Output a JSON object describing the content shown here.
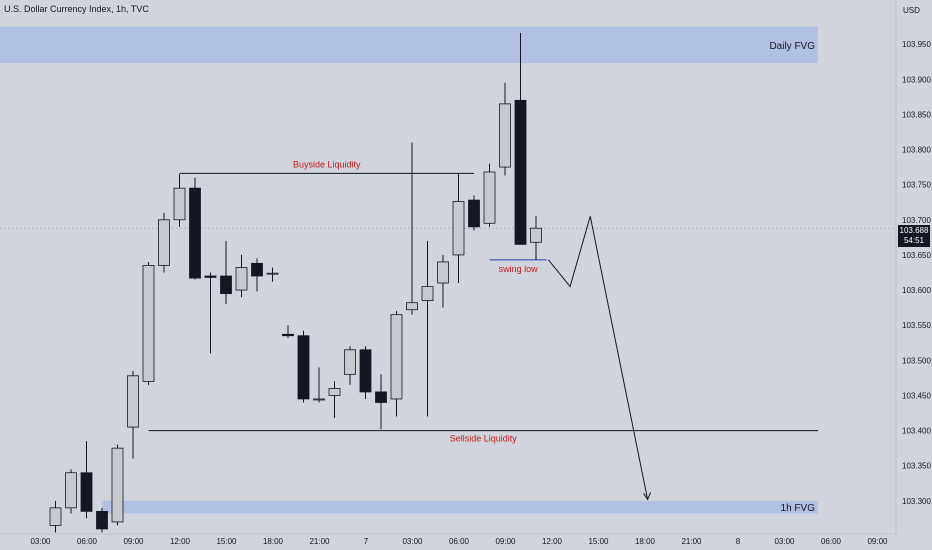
{
  "header": {
    "title": "U.S. Dollar Currency Index, 1h, TVC",
    "currency": "USD"
  },
  "last_price": {
    "value": "103.688",
    "countdown": "54:51"
  },
  "colors": {
    "background": "#d1d4dc",
    "zone_fill": "#b2c1e3",
    "bull_candle": "#c8c9ce",
    "bear_candle": "#131722",
    "annotation_red": "#c41a1a",
    "swing_low_line": "#2441a8",
    "level_line": "#131722",
    "crosshair": "#9aa0ab"
  },
  "chart_data": {
    "type": "candlestick",
    "title": "U.S. Dollar Currency Index, 1h, TVC",
    "ylim": [
      103.2585,
      104.0
    ],
    "y_ticks": [
      "103.950",
      "103.900",
      "103.850",
      "103.800",
      "103.750",
      "103.700",
      "103.650",
      "103.600",
      "103.550",
      "103.500",
      "103.450",
      "103.400",
      "103.350",
      "103.300"
    ],
    "x_ticks": [
      {
        "label": "03:00",
        "bar": 0
      },
      {
        "label": "06:00",
        "bar": 3
      },
      {
        "label": "09:00",
        "bar": 6
      },
      {
        "label": "12:00",
        "bar": 9
      },
      {
        "label": "15:00",
        "bar": 12
      },
      {
        "label": "18:00",
        "bar": 15
      },
      {
        "label": "21:00",
        "bar": 18
      },
      {
        "label": "7",
        "bar": 21
      },
      {
        "label": "03:00",
        "bar": 24
      },
      {
        "label": "06:00",
        "bar": 27
      },
      {
        "label": "09:00",
        "bar": 30
      },
      {
        "label": "12:00",
        "bar": 33
      },
      {
        "label": "15:00",
        "bar": 36
      },
      {
        "label": "18:00",
        "bar": 39
      },
      {
        "label": "21:00",
        "bar": 42
      },
      {
        "label": "8",
        "bar": 45
      },
      {
        "label": "03:00",
        "bar": 48
      },
      {
        "label": "06:00",
        "bar": 51
      },
      {
        "label": "09:00",
        "bar": 54
      }
    ],
    "candles": [
      {
        "o": 103.265,
        "h": 103.3,
        "l": 103.255,
        "c": 103.29
      },
      {
        "o": 103.29,
        "h": 103.345,
        "l": 103.282,
        "c": 103.34
      },
      {
        "o": 103.34,
        "h": 103.385,
        "l": 103.275,
        "c": 103.285
      },
      {
        "o": 103.285,
        "h": 103.29,
        "l": 103.255,
        "c": 103.26
      },
      {
        "o": 103.27,
        "h": 103.38,
        "l": 103.265,
        "c": 103.375
      },
      {
        "o": 103.405,
        "h": 103.485,
        "l": 103.36,
        "c": 103.478
      },
      {
        "o": 103.47,
        "h": 103.64,
        "l": 103.465,
        "c": 103.635
      },
      {
        "o": 103.635,
        "h": 103.71,
        "l": 103.625,
        "c": 103.7
      },
      {
        "o": 103.7,
        "h": 103.765,
        "l": 103.69,
        "c": 103.745
      },
      {
        "o": 103.745,
        "h": 103.76,
        "l": 103.615,
        "c": 103.617
      },
      {
        "o": 103.62,
        "h": 103.625,
        "l": 103.51,
        "c": 103.618
      },
      {
        "o": 103.62,
        "h": 103.67,
        "l": 103.58,
        "c": 103.595
      },
      {
        "o": 103.6,
        "h": 103.65,
        "l": 103.59,
        "c": 103.632
      },
      {
        "o": 103.638,
        "h": 103.645,
        "l": 103.598,
        "c": 103.62
      },
      {
        "o": 103.624,
        "h": 103.632,
        "l": 103.612,
        "c": 103.624
      },
      {
        "o": 103.537,
        "h": 103.55,
        "l": 103.532,
        "c": 103.535
      },
      {
        "o": 103.535,
        "h": 103.542,
        "l": 103.44,
        "c": 103.445
      },
      {
        "o": 103.445,
        "h": 103.49,
        "l": 103.44,
        "c": 103.445
      },
      {
        "o": 103.45,
        "h": 103.47,
        "l": 103.418,
        "c": 103.46
      },
      {
        "o": 103.48,
        "h": 103.52,
        "l": 103.465,
        "c": 103.515
      },
      {
        "o": 103.515,
        "h": 103.52,
        "l": 103.445,
        "c": 103.455
      },
      {
        "o": 103.455,
        "h": 103.48,
        "l": 103.402,
        "c": 103.44
      },
      {
        "o": 103.445,
        "h": 103.57,
        "l": 103.42,
        "c": 103.565
      },
      {
        "o": 103.572,
        "h": 103.81,
        "l": 103.565,
        "c": 103.582
      },
      {
        "o": 103.585,
        "h": 103.67,
        "l": 103.42,
        "c": 103.605
      },
      {
        "o": 103.61,
        "h": 103.65,
        "l": 103.575,
        "c": 103.64
      },
      {
        "o": 103.65,
        "h": 103.765,
        "l": 103.61,
        "c": 103.726
      },
      {
        "o": 103.728,
        "h": 103.735,
        "l": 103.685,
        "c": 103.69
      },
      {
        "o": 103.695,
        "h": 103.78,
        "l": 103.69,
        "c": 103.768
      },
      {
        "o": 103.775,
        "h": 103.895,
        "l": 103.763,
        "c": 103.865
      },
      {
        "o": 103.87,
        "h": 103.966,
        "l": 103.665,
        "c": 103.665
      },
      {
        "o": 103.668,
        "h": 103.705,
        "l": 103.643,
        "c": 103.688
      }
    ],
    "zones": [
      {
        "label": "Daily FVG",
        "top": 103.975,
        "bottom": 103.923
      },
      {
        "label": "1h FVG",
        "top": 103.3,
        "bottom": 103.282
      }
    ],
    "levels": [
      {
        "label": "Buyside Liquidity",
        "price": 103.766,
        "from_bar": 8,
        "to_bar": 27,
        "color": "#131722",
        "label_color": "#c41a1a"
      },
      {
        "label": "Sellside Liquidity",
        "price": 103.4,
        "from_bar": 6,
        "to_bar": 56,
        "color": "#131722",
        "label_color": "#c41a1a"
      },
      {
        "label": "swing low",
        "price": 103.643,
        "from_bar": 28,
        "to_bar": 31.7,
        "color": "#2441a8",
        "label_color": "#c41a1a"
      }
    ],
    "projection": [
      {
        "bar": 31.8,
        "price": 103.643
      },
      {
        "bar": 33.2,
        "price": 103.605
      },
      {
        "bar": 34.5,
        "price": 103.705
      },
      {
        "bar": 38.2,
        "price": 103.302
      }
    ],
    "last_price": 103.688
  }
}
